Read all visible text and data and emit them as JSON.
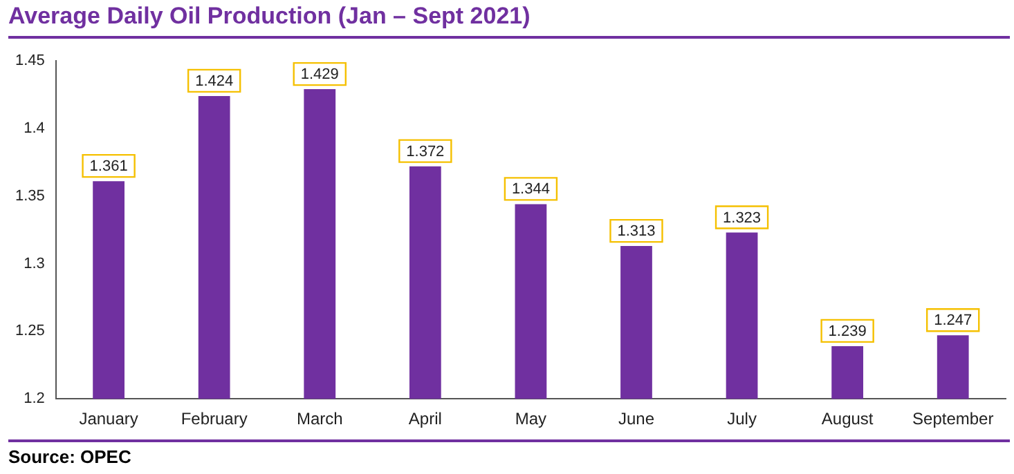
{
  "chart_data": {
    "type": "bar",
    "title": "Average Daily Oil Production  (Jan – Sept 2021)",
    "categories": [
      "January",
      "February",
      "March",
      "April",
      "May",
      "June",
      "July",
      "August",
      "September"
    ],
    "values": [
      1.361,
      1.424,
      1.429,
      1.372,
      1.344,
      1.313,
      1.323,
      1.239,
      1.247
    ],
    "color": "#7030a0",
    "ylim": [
      1.2,
      1.45
    ],
    "yticks": [
      1.2,
      1.25,
      1.3,
      1.35,
      1.4,
      1.45
    ],
    "grid": false,
    "legend": false,
    "data_labels": true,
    "annotations": [
      "Source: OPEC"
    ]
  }
}
